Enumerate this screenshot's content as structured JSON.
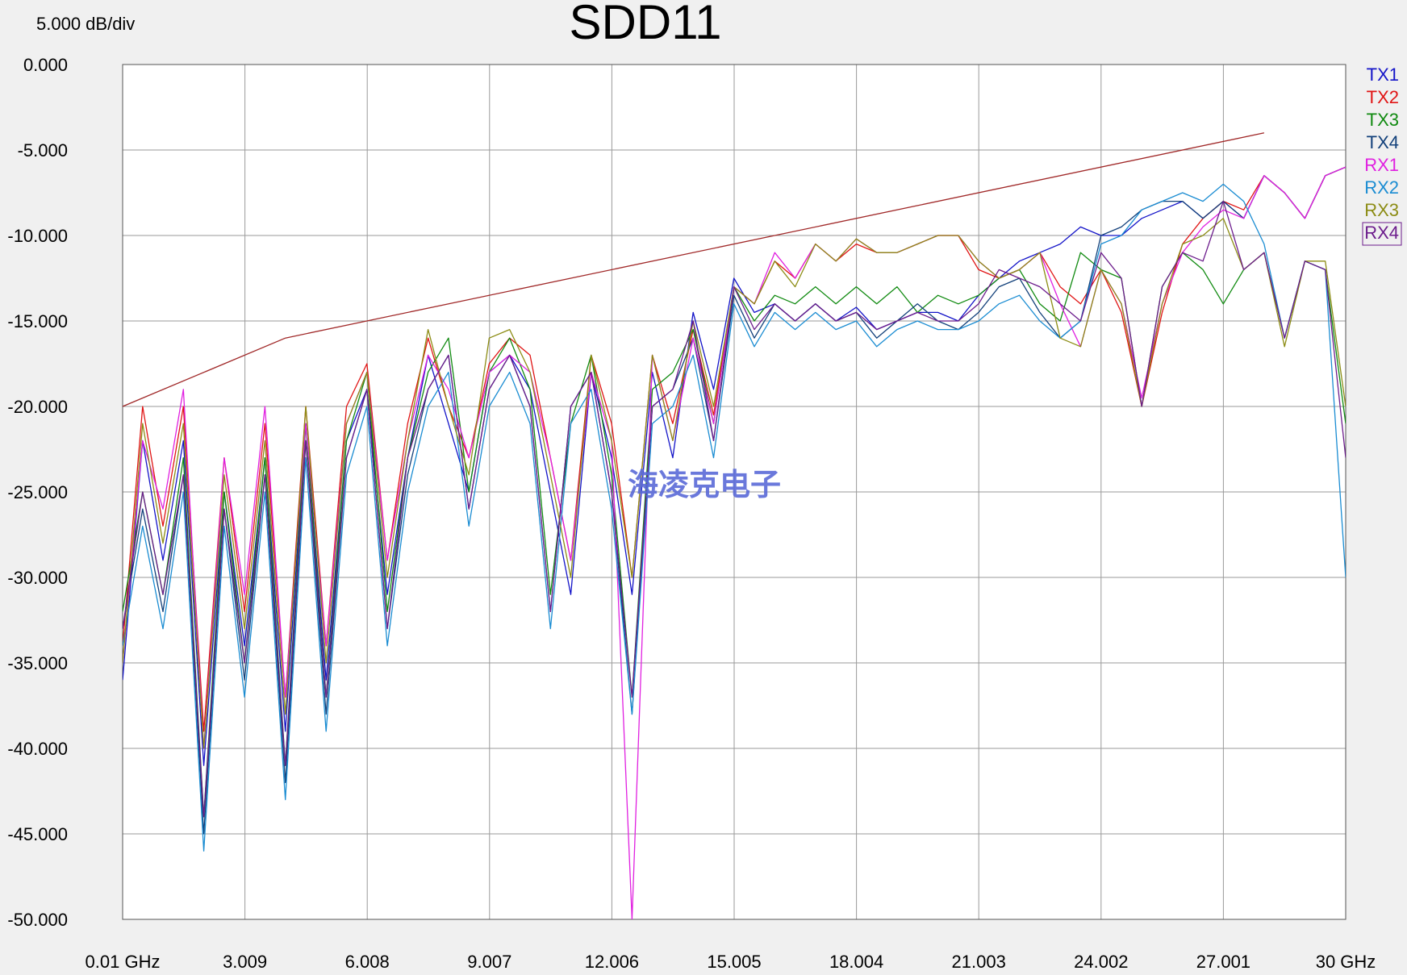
{
  "chart_data": {
    "type": "line",
    "title": "SDD11",
    "scale_label": "5.000 dB/div",
    "watermark": "海凌克电子",
    "xlim": [
      0.01,
      30
    ],
    "ylim": [
      -50,
      0
    ],
    "grid": true,
    "legend": "right",
    "xticks": [
      {
        "value": 0.01,
        "label": "0.01 GHz"
      },
      3.009,
      6.008,
      9.007,
      12.006,
      15.005,
      18.004,
      21.003,
      24.002,
      27.001,
      {
        "value": 30,
        "label": "30 GHz"
      }
    ],
    "yticks": [
      {
        "value": 0,
        "label": "0.000"
      },
      {
        "value": -5,
        "label": "-5.000"
      },
      {
        "value": -10,
        "label": "-10.000"
      },
      {
        "value": -15,
        "label": "-15.000"
      },
      {
        "value": -20,
        "label": "-20.000"
      },
      {
        "value": -25,
        "label": "-25.000"
      },
      {
        "value": -30,
        "label": "-30.000"
      },
      {
        "value": -35,
        "label": "-35.000"
      },
      {
        "value": -40,
        "label": "-40.000"
      },
      {
        "value": -45,
        "label": "-45.000"
      },
      {
        "value": -50,
        "label": "-50.000"
      }
    ],
    "x": [
      0.01,
      0.5,
      1,
      1.5,
      2,
      2.5,
      3,
      3.5,
      4,
      4.5,
      5,
      5.5,
      6,
      6.5,
      7,
      7.5,
      8,
      8.5,
      9,
      9.5,
      10,
      10.5,
      11,
      11.5,
      12,
      12.5,
      13,
      13.5,
      14,
      14.5,
      15,
      15.5,
      16,
      16.5,
      17,
      17.5,
      18,
      18.5,
      19,
      19.5,
      20,
      20.5,
      21,
      21.5,
      22,
      22.5,
      23,
      23.5,
      24,
      24.5,
      25,
      25.5,
      26,
      26.5,
      27,
      27.5,
      28,
      28.5,
      29,
      29.5,
      30
    ],
    "limit_line": {
      "color": "#a02828",
      "x": [
        0.01,
        4,
        28
      ],
      "values": [
        -20,
        -16,
        -4
      ]
    },
    "series": [
      {
        "name": "TX1",
        "color": "#1414c8",
        "values": [
          -36,
          -22,
          -29,
          -22,
          -41,
          -25,
          -34,
          -23,
          -39,
          -21,
          -36,
          -22,
          -19,
          -31,
          -23,
          -17,
          -21,
          -25,
          -18,
          -17,
          -19,
          -25,
          -31,
          -18,
          -23,
          -31,
          -18,
          -23,
          -14.5,
          -19,
          -12.5,
          -14.5,
          -14,
          -15,
          -14,
          -15,
          -14.2,
          -15.5,
          -15,
          -14.5,
          -14.5,
          -15,
          -13.5,
          -12.5,
          -11.5,
          -11,
          -10.5,
          -9.5,
          -10,
          -10,
          -9,
          -8.5,
          -8,
          -9,
          -8,
          -9,
          -6.5,
          -7.5,
          -9,
          -6.5,
          -6
        ]
      },
      {
        "name": "TX2",
        "color": "#e01414",
        "values": [
          -34,
          -20,
          -27,
          -20,
          -39,
          -23,
          -32,
          -21,
          -37,
          -20,
          -34,
          -20,
          -17.5,
          -29,
          -21,
          -16,
          -20,
          -23,
          -17.5,
          -16,
          -17,
          -23,
          -29,
          -17,
          -21,
          -30,
          -17,
          -21,
          -15.5,
          -20.5,
          -13,
          -14,
          -11.5,
          -12.5,
          -10.5,
          -11.5,
          -10.5,
          -11,
          -11,
          -10.5,
          -10,
          -10,
          -12,
          -12.5,
          -12,
          -11,
          -13,
          -14,
          -12,
          -14.5,
          -20,
          -14.5,
          -10.5,
          -9,
          -8,
          -8.5,
          -6.5,
          -7.5,
          -9,
          -6.5,
          -6
        ]
      },
      {
        "name": "TX3",
        "color": "#108a10",
        "values": [
          -32,
          -25,
          -31,
          -23,
          -44,
          -25,
          -35,
          -23,
          -41,
          -21,
          -37,
          -22,
          -18,
          -32,
          -23,
          -18,
          -16,
          -25,
          -18,
          -16,
          -19,
          -31,
          -21,
          -17,
          -24,
          -37,
          -19,
          -18,
          -15.5,
          -21,
          -13,
          -15,
          -13.5,
          -14,
          -13,
          -14,
          -13,
          -14,
          -13,
          -14.5,
          -13.5,
          -14,
          -13.5,
          -12.5,
          -12,
          -14,
          -15,
          -11,
          -12,
          -12.5,
          -20,
          -13,
          -11,
          -12,
          -14,
          -12,
          -11,
          -16,
          -11.5,
          -12,
          -21
        ]
      },
      {
        "name": "TX4",
        "color": "#12407a",
        "values": [
          -33,
          -26,
          -32,
          -24,
          -45,
          -26,
          -36,
          -24,
          -42,
          -22,
          -38,
          -23,
          -19,
          -33,
          -24,
          -19,
          -17,
          -26,
          -19,
          -17,
          -20,
          -32,
          -20,
          -18,
          -25,
          -38,
          -20,
          -19,
          -16,
          -22,
          -13.5,
          -16,
          -14,
          -15,
          -14,
          -15,
          -14.5,
          -16,
          -15,
          -14,
          -15,
          -15.5,
          -14.5,
          -13,
          -12.5,
          -14.5,
          -16,
          -15,
          -10,
          -9.5,
          -8.5,
          -8,
          -8,
          -9,
          -8,
          -9,
          -6.5,
          -7.5,
          -9,
          -6.5,
          -6
        ]
      },
      {
        "name": "RX1",
        "color": "#e020e0",
        "values": [
          -35,
          -22,
          -26,
          -19,
          -40,
          -23,
          -31,
          -20,
          -37,
          -21,
          -34,
          -21,
          -18,
          -29,
          -22,
          -17,
          -19,
          -23,
          -18,
          -17,
          -18,
          -23,
          -29,
          -18,
          -22,
          -50,
          -17,
          -22,
          -16,
          -21,
          -13,
          -14,
          -11,
          -12.5,
          -10.5,
          -11.5,
          -10.2,
          -11,
          -11,
          -10.5,
          -10,
          -10,
          -11.5,
          -12.5,
          -12,
          -11,
          -14,
          -16.5,
          -12,
          -14,
          -19.5,
          -14,
          -11,
          -9.5,
          -8.5,
          -9,
          -6.5,
          -7.5,
          -9,
          -6.5,
          -6
        ]
      },
      {
        "name": "RX2",
        "color": "#1a8cd2",
        "values": [
          -34,
          -27,
          -33,
          -25,
          -46,
          -27,
          -37,
          -25,
          -43,
          -23,
          -39,
          -24,
          -20,
          -34,
          -25,
          -20,
          -18,
          -27,
          -20,
          -18,
          -21,
          -33,
          -21,
          -19,
          -26,
          -38,
          -21,
          -20,
          -17,
          -23,
          -14,
          -16.5,
          -14.5,
          -15.5,
          -14.5,
          -15.5,
          -15,
          -16.5,
          -15.5,
          -15,
          -15.5,
          -15.5,
          -15,
          -14,
          -13.5,
          -15,
          -16,
          -15,
          -10.5,
          -10,
          -8.5,
          -8,
          -7.5,
          -8,
          -7,
          -8,
          -10.5,
          -16,
          -11.5,
          -12,
          -30
        ]
      },
      {
        "name": "RX3",
        "color": "#8c8c14",
        "values": [
          -35,
          -21,
          -28,
          -21,
          -40,
          -24,
          -33,
          -22,
          -38,
          -20,
          -35,
          -21,
          -18,
          -30,
          -22,
          -15.5,
          -20,
          -24,
          -16,
          -15.5,
          -18,
          -24,
          -30,
          -17,
          -22,
          -30,
          -17,
          -22,
          -15,
          -20,
          -13,
          -14,
          -11.5,
          -13,
          -10.5,
          -11.5,
          -10.2,
          -11,
          -11,
          -10.5,
          -10,
          -10,
          -11.5,
          -12.5,
          -12,
          -11,
          -16,
          -16.5,
          -12,
          -14,
          -20,
          -14,
          -10.5,
          -10,
          -9,
          -12,
          -11,
          -16.5,
          -11.5,
          -11.5,
          -20
        ]
      },
      {
        "name": "RX4",
        "color": "#6c1c8c",
        "values": [
          -33,
          -25,
          -31,
          -24,
          -44,
          -26,
          -35,
          -24,
          -41,
          -22,
          -37,
          -23,
          -19,
          -33,
          -23,
          -19,
          -17,
          -26,
          -19,
          -17,
          -20,
          -32,
          -20,
          -18,
          -25,
          -37,
          -20,
          -19,
          -15,
          -22,
          -13,
          -15.5,
          -14,
          -15,
          -14,
          -15,
          -14.5,
          -15.5,
          -15,
          -14.5,
          -15,
          -15,
          -14,
          -12,
          -12.5,
          -13,
          -14,
          -15,
          -11,
          -12.5,
          -20,
          -13,
          -11,
          -11.5,
          -8,
          -12,
          -11,
          -16,
          -11.5,
          -12,
          -23
        ]
      }
    ]
  }
}
